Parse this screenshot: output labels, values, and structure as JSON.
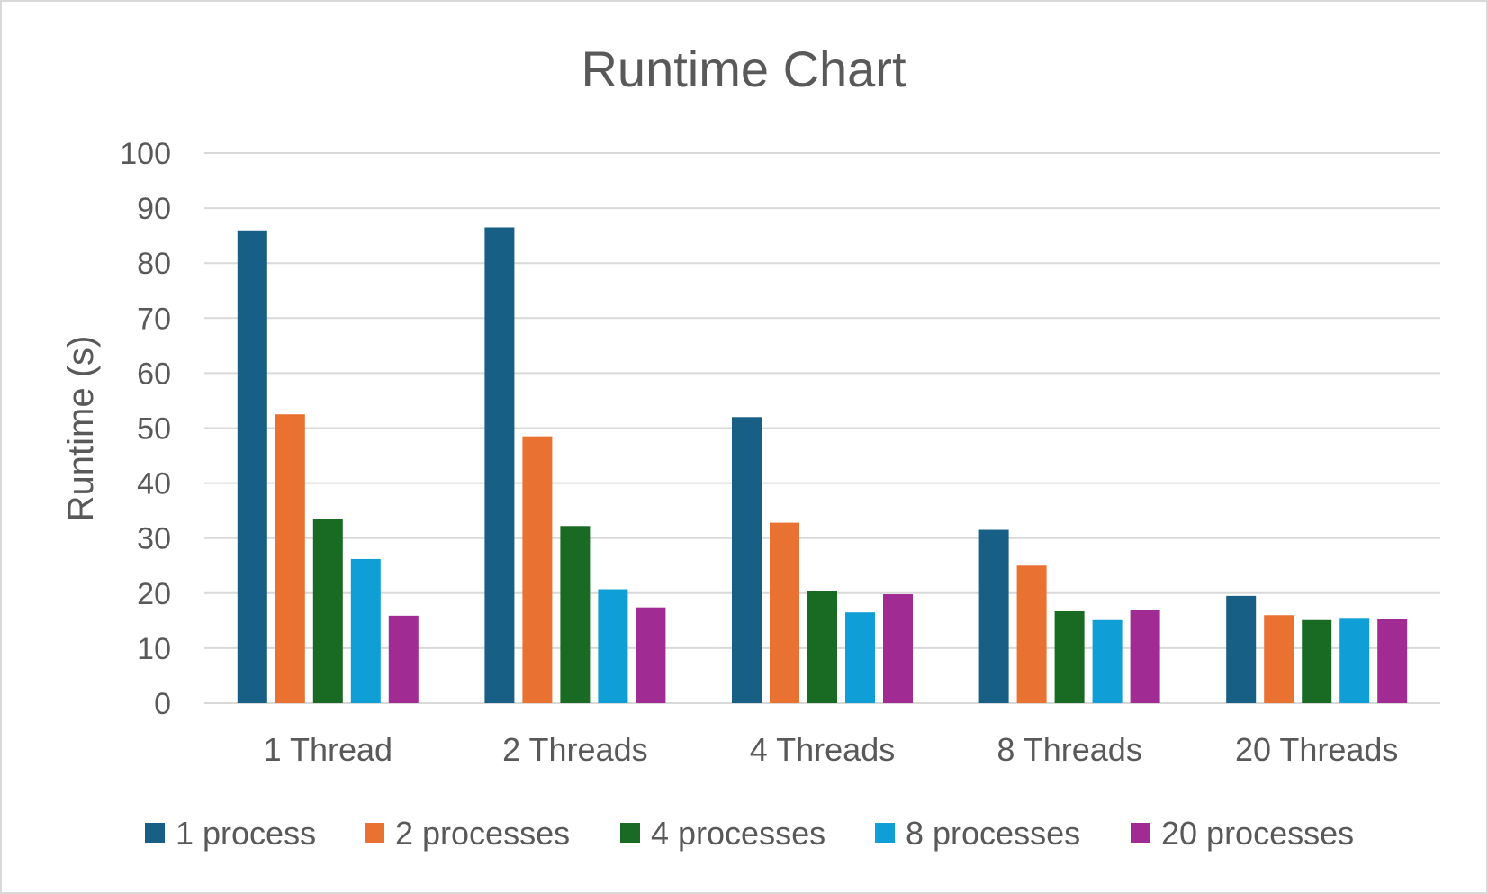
{
  "chart_data": {
    "type": "bar",
    "title": "Runtime Chart",
    "xlabel": "",
    "ylabel": "Runtime (s)",
    "ylim": [
      0,
      100
    ],
    "yticks": [
      0,
      10,
      20,
      30,
      40,
      50,
      60,
      70,
      80,
      90,
      100
    ],
    "grid": true,
    "legend_position": "bottom",
    "categories": [
      "1 Thread",
      "2 Threads",
      "4 Threads",
      "8 Threads",
      "20 Threads"
    ],
    "series": [
      {
        "name": "1 process",
        "color": "#175F85",
        "values": [
          85.8,
          86.5,
          52.0,
          31.5,
          19.5
        ]
      },
      {
        "name": "2 processes",
        "color": "#E97132",
        "values": [
          52.5,
          48.5,
          32.8,
          25.0,
          16.0
        ]
      },
      {
        "name": "4 processes",
        "color": "#196B24",
        "values": [
          33.5,
          32.2,
          20.3,
          16.7,
          15.1
        ]
      },
      {
        "name": "8 processes",
        "color": "#0F9ED5",
        "values": [
          26.2,
          20.7,
          16.5,
          15.1,
          15.5
        ]
      },
      {
        "name": "20 processes",
        "color": "#A02B93",
        "values": [
          15.9,
          17.4,
          19.8,
          17.0,
          15.3
        ]
      }
    ]
  }
}
